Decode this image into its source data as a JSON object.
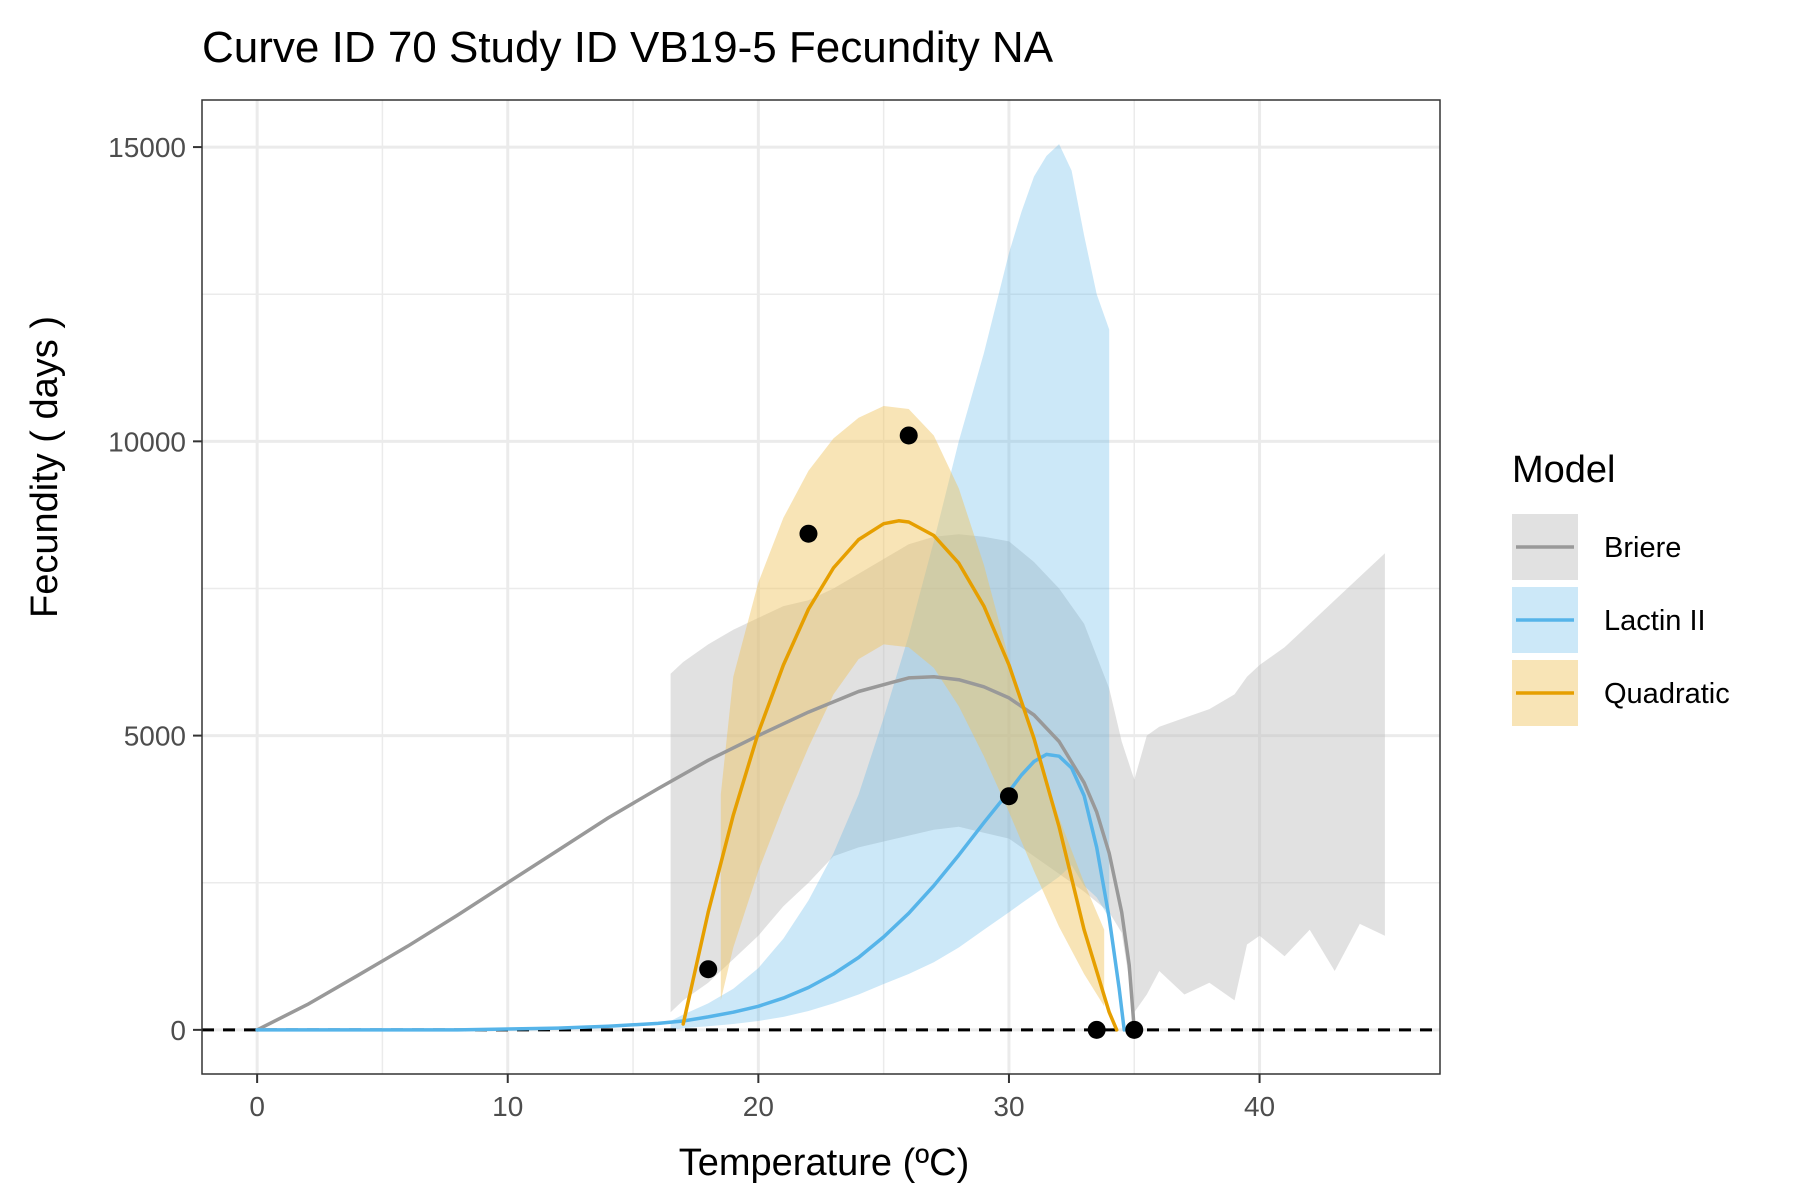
{
  "chart_data": {
    "type": "line",
    "title": "Curve ID 70 Study ID VB19-5 Fecundity NA",
    "xlabel": "Temperature (ºC)",
    "ylabel": "Fecundity ( days )",
    "xlim": [
      -2.2,
      47.2
    ],
    "ylim": [
      -750,
      15800
    ],
    "x_ticks": [
      0,
      10,
      20,
      30,
      40
    ],
    "x_tick_labels": [
      "0",
      "10",
      "20",
      "30",
      "40"
    ],
    "y_ticks": [
      0,
      5000,
      10000,
      15000
    ],
    "y_tick_labels": [
      "0",
      "5000",
      "10000",
      "15000"
    ],
    "grid": true,
    "reference_line": {
      "y": 0,
      "style": "dashed",
      "color": "#000000"
    },
    "legend": {
      "title": "Model",
      "position": "right",
      "entries": [
        "Briere",
        "Lactin II",
        "Quadratic"
      ]
    },
    "observed_points": {
      "x": [
        18,
        22,
        26,
        30,
        33.5,
        35
      ],
      "y": [
        1030,
        8430,
        10100,
        3970,
        0,
        0
      ]
    },
    "series": [
      {
        "name": "Briere",
        "color": "#999999",
        "fill_color": "#bdbdbd",
        "x": [
          0,
          2,
          4,
          6,
          8,
          10,
          12,
          14,
          16,
          18,
          20,
          22,
          24,
          26,
          27,
          28,
          29,
          30,
          31,
          32,
          33,
          33.5,
          34,
          34.5,
          34.8,
          35
        ],
        "y": [
          0,
          430,
          920,
          1420,
          1950,
          2500,
          3050,
          3600,
          4100,
          4580,
          5000,
          5400,
          5750,
          5980,
          6000,
          5950,
          5830,
          5640,
          5350,
          4900,
          4200,
          3700,
          3000,
          2000,
          1100,
          0
        ],
        "band": {
          "x": [
            16.5,
            17,
            18,
            19,
            20,
            21,
            22,
            23,
            24,
            25,
            26,
            27,
            28,
            29,
            30,
            31,
            32,
            33,
            34,
            34.5,
            35,
            35.5,
            36,
            37,
            38,
            39,
            39.5,
            40,
            41,
            42,
            43,
            44,
            45
          ],
          "upper": [
            6050,
            6250,
            6550,
            6800,
            7000,
            7200,
            7300,
            7500,
            7750,
            8000,
            8250,
            8380,
            8420,
            8380,
            8300,
            7950,
            7500,
            6900,
            5800,
            4900,
            4250,
            5000,
            5150,
            5300,
            5450,
            5700,
            6000,
            6200,
            6500,
            6900,
            7300,
            7700,
            8100
          ],
          "lower": [
            300,
            500,
            800,
            1200,
            1600,
            2100,
            2500,
            2950,
            3100,
            3200,
            3300,
            3400,
            3450,
            3350,
            3250,
            2950,
            2650,
            2350,
            2000,
            1650,
            300,
            600,
            1000,
            600,
            800,
            500,
            1450,
            1600,
            1250,
            1700,
            1000,
            1800,
            1600
          ]
        }
      },
      {
        "name": "Lactin II",
        "color": "#56b4e9",
        "fill_color": "#56b4e9",
        "x": [
          0,
          4,
          8,
          12,
          14,
          16,
          17,
          18,
          19,
          20,
          21,
          22,
          23,
          24,
          25,
          26,
          27,
          28,
          29,
          30,
          30.5,
          31,
          31.5,
          32,
          32.5,
          33,
          33.5,
          34,
          34.2,
          34.4,
          34.6
        ],
        "y": [
          0,
          0,
          0,
          30,
          60,
          110,
          150,
          220,
          300,
          400,
          540,
          720,
          950,
          1230,
          1580,
          1980,
          2450,
          2970,
          3520,
          4050,
          4330,
          4560,
          4680,
          4650,
          4450,
          3980,
          3100,
          1900,
          1300,
          700,
          0
        ],
        "band": {
          "x": [
            16.5,
            17,
            18,
            19,
            20,
            21,
            22,
            23,
            24,
            25,
            26,
            27,
            28,
            29,
            30,
            30.5,
            31,
            31.5,
            32,
            32.5,
            33,
            33.5,
            34
          ],
          "upper": [
            150,
            260,
            450,
            700,
            1050,
            1550,
            2200,
            3000,
            4000,
            5300,
            6700,
            8300,
            10000,
            11500,
            13200,
            13900,
            14500,
            14850,
            15050,
            14600,
            13500,
            12500,
            11900
          ],
          "lower": [
            0,
            30,
            60,
            100,
            150,
            220,
            320,
            450,
            600,
            780,
            950,
            1150,
            1400,
            1700,
            2000,
            2150,
            2300,
            2450,
            2600,
            2800,
            2450,
            2250,
            1900
          ]
        }
      },
      {
        "name": "Quadratic",
        "color": "#e69f00",
        "fill_color": "#f0c35e",
        "x": [
          17,
          18,
          19,
          20,
          21,
          22,
          23,
          24,
          25,
          25.6,
          26,
          27,
          28,
          29,
          30,
          31,
          32,
          33,
          34,
          34.3
        ],
        "y": [
          100,
          2000,
          3650,
          5050,
          6200,
          7150,
          7850,
          8330,
          8600,
          8650,
          8630,
          8400,
          7930,
          7200,
          6200,
          4950,
          3450,
          1700,
          300,
          0
        ],
        "band": {
          "x": [
            18.5,
            19,
            20,
            21,
            22,
            23,
            24,
            25,
            26,
            27,
            28,
            29,
            30,
            31,
            32,
            33,
            33.8
          ],
          "upper": [
            4000,
            6000,
            7600,
            8700,
            9500,
            10050,
            10400,
            10600,
            10550,
            10100,
            9200,
            7900,
            6300,
            4900,
            3600,
            2500,
            1700
          ],
          "lower": [
            500,
            1400,
            2700,
            3800,
            4800,
            5700,
            6300,
            6550,
            6500,
            6150,
            5500,
            4650,
            3700,
            2700,
            1750,
            950,
            400
          ]
        }
      }
    ]
  }
}
